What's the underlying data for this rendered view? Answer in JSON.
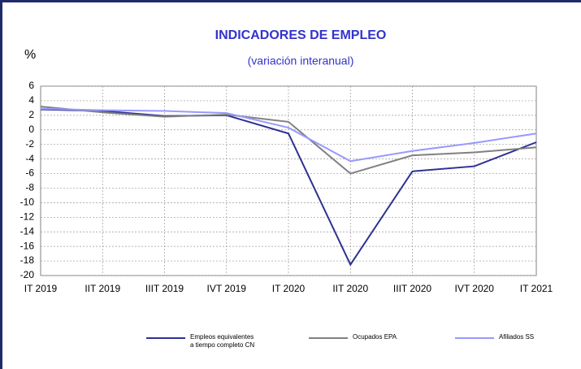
{
  "chart_data": {
    "type": "line",
    "title": "INDICADORES DE EMPLEO",
    "subtitle": "(variación interanual)",
    "y_label": "%",
    "categories": [
      "IT 2019",
      "IIT 2019",
      "IIIT 2019",
      "IVT 2019",
      "IT 2020",
      "IIT 2020",
      "IIIT 2020",
      "IVT 2020",
      "IT 2021"
    ],
    "series": [
      {
        "name": "Empleos equivalentes a tiempo completo CN",
        "color": "#2e3192",
        "values": [
          2.8,
          2.6,
          1.9,
          2.0,
          -0.5,
          -18.5,
          -5.7,
          -5.0,
          -1.7
        ]
      },
      {
        "name": "Ocupados EPA",
        "color": "#808080",
        "values": [
          3.2,
          2.4,
          1.8,
          2.1,
          1.1,
          -6.0,
          -3.5,
          -3.1,
          -2.4
        ]
      },
      {
        "name": "Afiliados SS",
        "color": "#9999ff",
        "values": [
          2.9,
          2.7,
          2.6,
          2.3,
          0.3,
          -4.3,
          -2.9,
          -1.8,
          -0.5
        ]
      }
    ],
    "ylim": [
      -20,
      6
    ],
    "yticks": [
      6,
      4,
      2,
      0,
      -2,
      -4,
      -6,
      -8,
      -10,
      -12,
      -14,
      -16,
      -18,
      -20
    ],
    "grid": true
  }
}
